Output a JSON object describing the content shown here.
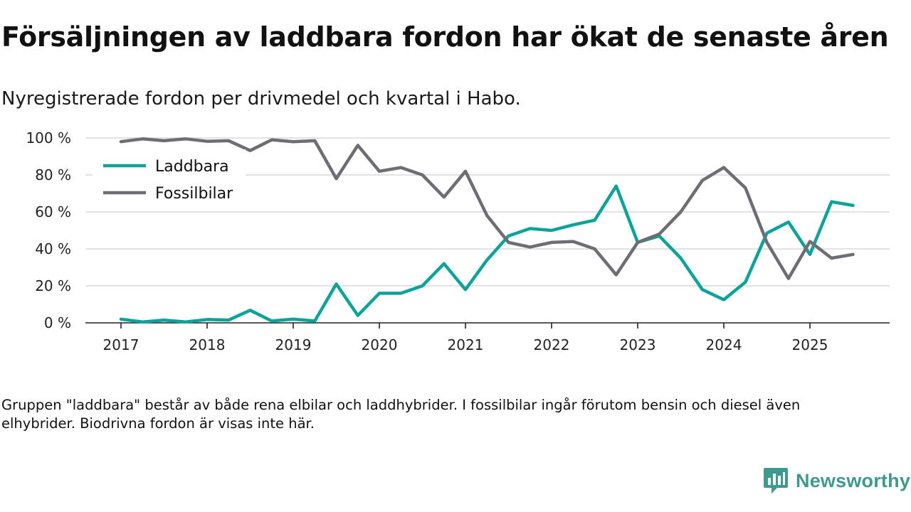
{
  "title": "Försäljningen av laddbara fordon har ökat de senaste åren",
  "subtitle": "Nyregistrerade fordon per drivmedel och kvartal i Habo.",
  "footnote": "Gruppen \"laddbara\" består av både rena elbilar och laddhybrider. I fossilbilar ingår förutom bensin och diesel även elhybrider. Biodrivna fordon är visas inte här.",
  "brand": {
    "name": "Newsworthy",
    "color": "#3e9a8f"
  },
  "chart_data": {
    "type": "line",
    "title": "Försäljningen av laddbara fordon har ökat de senaste åren",
    "subtitle": "Nyregistrerade fordon per drivmedel och kvartal i Habo.",
    "xlabel": "",
    "ylabel": "",
    "ylim": [
      0,
      100
    ],
    "yticks": [
      0,
      20,
      40,
      60,
      80,
      100
    ],
    "ytick_labels": [
      "0 %",
      "20 %",
      "40 %",
      "60 %",
      "80 %",
      "100 %"
    ],
    "xlim": [
      2017,
      2025.92
    ],
    "xticks": [
      2017,
      2018,
      2019,
      2020,
      2021,
      2022,
      2023,
      2024,
      2025
    ],
    "xtick_labels": [
      "2017",
      "2018",
      "2019",
      "2020",
      "2021",
      "2022",
      "2023",
      "2024",
      "2025"
    ],
    "x_start": 2017,
    "x_step": 0.25,
    "grid": true,
    "legend_position": "top-left",
    "series": [
      {
        "name": "Laddbara",
        "color": "#0ea39a",
        "values": [
          2,
          0.5,
          1.5,
          0.5,
          1.8,
          1.5,
          6.8,
          1,
          2,
          1,
          21,
          4,
          16,
          16,
          20,
          32,
          18,
          34,
          47,
          51,
          50,
          53,
          55.5,
          74,
          43.5,
          47,
          35,
          18,
          12.5,
          22,
          48.5,
          54.5,
          37,
          65.5,
          63.5
        ]
      },
      {
        "name": "Fossilbilar",
        "color": "#6e6d74",
        "values": [
          98,
          99.5,
          98.5,
          99.5,
          98.2,
          98.5,
          93.2,
          99,
          98,
          98.5,
          78,
          96,
          82,
          84,
          80,
          68,
          82,
          58,
          43.5,
          41,
          43.5,
          44,
          40,
          26,
          43.5,
          48,
          60,
          77,
          84,
          73,
          43.5,
          24,
          44,
          35,
          37
        ]
      }
    ]
  }
}
